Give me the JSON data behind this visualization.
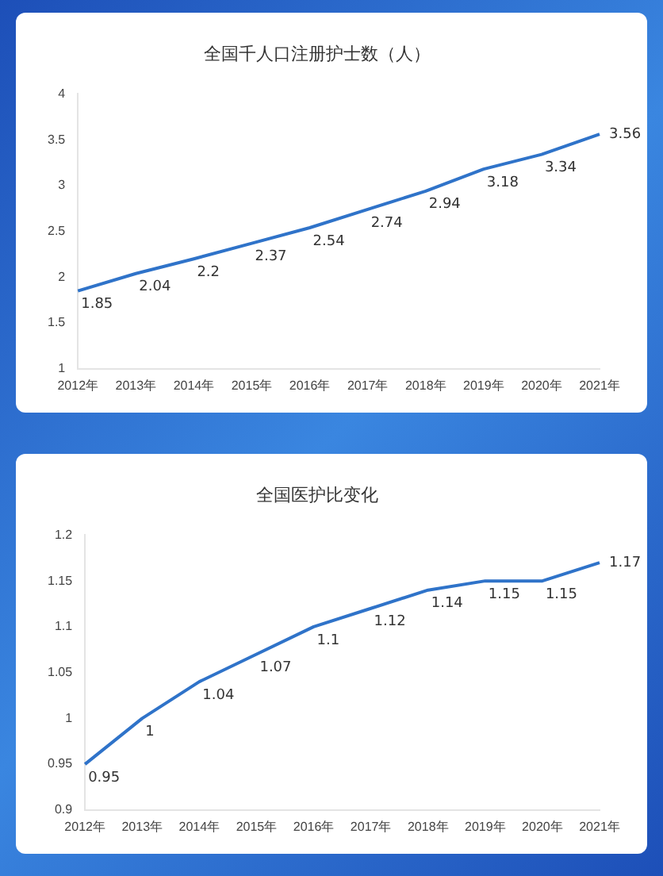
{
  "chart_data": [
    {
      "type": "line",
      "title": "全国千人口注册护士数（人）",
      "categories": [
        "2012年",
        "2013年",
        "2014年",
        "2015年",
        "2016年",
        "2017年",
        "2018年",
        "2019年",
        "2020年",
        "2021年"
      ],
      "series": [
        {
          "color": "#2f73c9",
          "values": [
            1.85,
            2.04,
            2.2,
            2.37,
            2.54,
            2.74,
            2.94,
            3.18,
            3.34,
            3.56
          ]
        }
      ],
      "ylim": [
        1,
        4
      ],
      "yticks": [
        1,
        1.5,
        2,
        2.5,
        3,
        3.5,
        4
      ],
      "data_labels": true,
      "grid": false,
      "legend": false,
      "marker": "none",
      "line_style": "solid"
    },
    {
      "type": "line",
      "title": "全国医护比变化",
      "categories": [
        "2012年",
        "2013年",
        "2014年",
        "2015年",
        "2016年",
        "2017年",
        "2018年",
        "2019年",
        "2020年",
        "2021年"
      ],
      "series": [
        {
          "color": "#2f73c9",
          "values": [
            0.95,
            1,
            1.04,
            1.07,
            1.1,
            1.12,
            1.14,
            1.15,
            1.15,
            1.17
          ]
        }
      ],
      "ylim": [
        0.9,
        1.2
      ],
      "yticks": [
        0.9,
        0.95,
        1,
        1.05,
        1.1,
        1.15,
        1.2
      ],
      "data_labels": true,
      "grid": false,
      "legend": false,
      "marker": "none",
      "line_style": "solid"
    }
  ]
}
